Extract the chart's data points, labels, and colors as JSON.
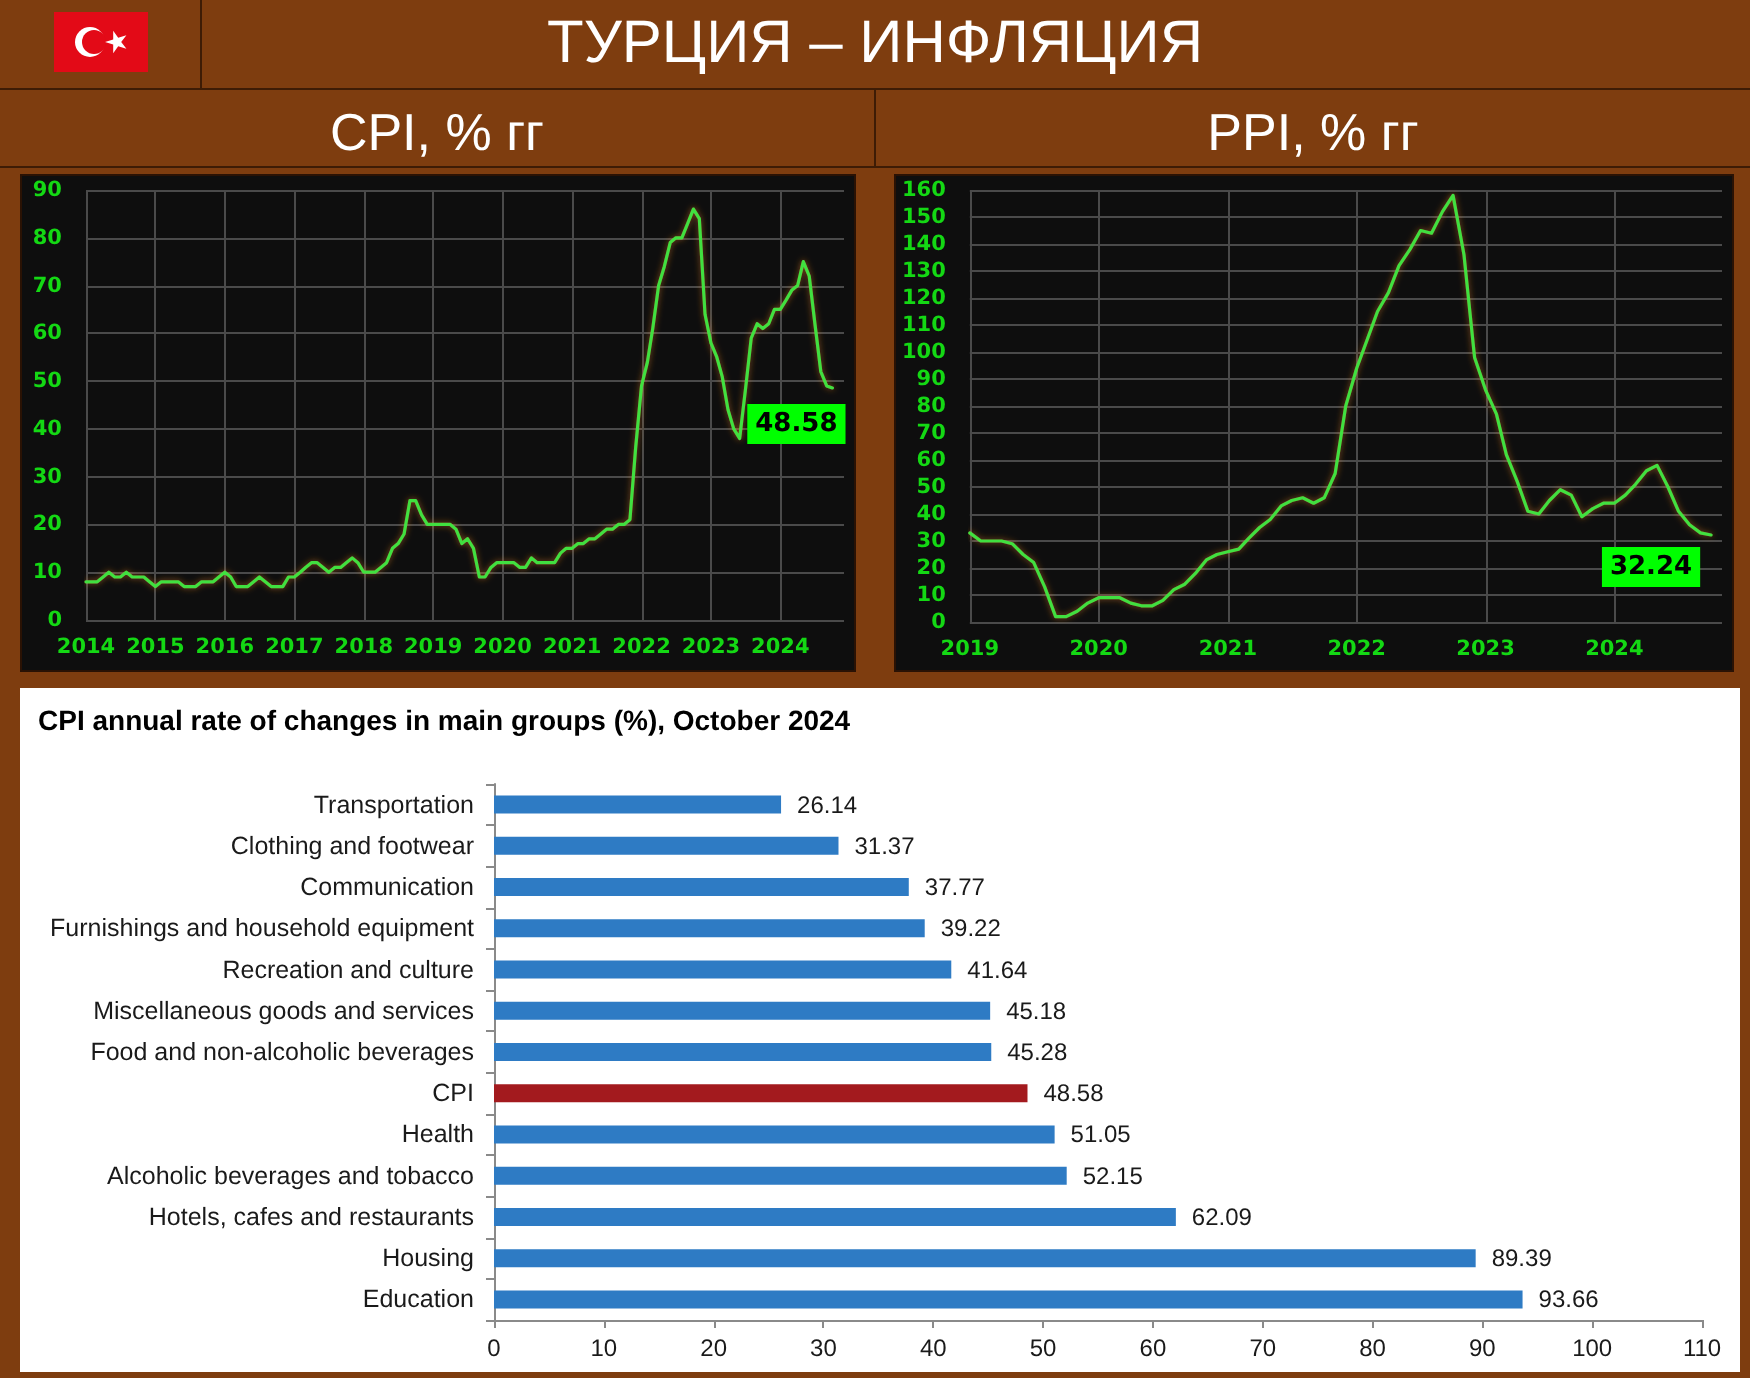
{
  "chart_data": [
    {
      "type": "other",
      "title": "ТУРЦИЯ – ИНФЛЯЦИЯ"
    },
    {
      "type": "line",
      "title": "CPI, % гг",
      "x": [
        "2014-01",
        "2014-02",
        "2014-03",
        "2014-04",
        "2014-05",
        "2014-06",
        "2014-07",
        "2014-08",
        "2014-09",
        "2014-10",
        "2014-11",
        "2014-12",
        "2015-01",
        "2015-02",
        "2015-03",
        "2015-04",
        "2015-05",
        "2015-06",
        "2015-07",
        "2015-08",
        "2015-09",
        "2015-10",
        "2015-11",
        "2015-12",
        "2016-01",
        "2016-02",
        "2016-03",
        "2016-04",
        "2016-05",
        "2016-06",
        "2016-07",
        "2016-08",
        "2016-09",
        "2016-10",
        "2016-11",
        "2016-12",
        "2017-01",
        "2017-02",
        "2017-03",
        "2017-04",
        "2017-05",
        "2017-06",
        "2017-07",
        "2017-08",
        "2017-09",
        "2017-10",
        "2017-11",
        "2017-12",
        "2018-01",
        "2018-02",
        "2018-03",
        "2018-04",
        "2018-05",
        "2018-06",
        "2018-07",
        "2018-08",
        "2018-09",
        "2018-10",
        "2018-11",
        "2018-12",
        "2019-01",
        "2019-02",
        "2019-03",
        "2019-04",
        "2019-05",
        "2019-06",
        "2019-07",
        "2019-08",
        "2019-09",
        "2019-10",
        "2019-11",
        "2019-12",
        "2020-01",
        "2020-02",
        "2020-03",
        "2020-04",
        "2020-05",
        "2020-06",
        "2020-07",
        "2020-08",
        "2020-09",
        "2020-10",
        "2020-11",
        "2020-12",
        "2021-01",
        "2021-02",
        "2021-03",
        "2021-04",
        "2021-05",
        "2021-06",
        "2021-07",
        "2021-08",
        "2021-09",
        "2021-10",
        "2021-11",
        "2021-12",
        "2022-01",
        "2022-02",
        "2022-03",
        "2022-04",
        "2022-05",
        "2022-06",
        "2022-07",
        "2022-08",
        "2022-09",
        "2022-10",
        "2022-11",
        "2022-12",
        "2023-01",
        "2023-02",
        "2023-03",
        "2023-04",
        "2023-05",
        "2023-06",
        "2023-07",
        "2023-08",
        "2023-09",
        "2023-10",
        "2023-11",
        "2023-12",
        "2024-01",
        "2024-02",
        "2024-03",
        "2024-04",
        "2024-05",
        "2024-06",
        "2024-07",
        "2024-08",
        "2024-09",
        "2024-10"
      ],
      "values": [
        8,
        8,
        8,
        9,
        10,
        9,
        9,
        10,
        9,
        9,
        9,
        8,
        7,
        8,
        8,
        8,
        8,
        7,
        7,
        7,
        8,
        8,
        8,
        9,
        10,
        9,
        7,
        7,
        7,
        8,
        9,
        8,
        7,
        7,
        7,
        9,
        9,
        10,
        11,
        12,
        12,
        11,
        10,
        11,
        11,
        12,
        13,
        12,
        10,
        10,
        10,
        11,
        12,
        15,
        16,
        18,
        25,
        25,
        22,
        20,
        20,
        20,
        20,
        20,
        19,
        16,
        17,
        15,
        9,
        9,
        11,
        12,
        12,
        12,
        12,
        11,
        11,
        13,
        12,
        12,
        12,
        12,
        14,
        15,
        15,
        16,
        16,
        17,
        17,
        18,
        19,
        19,
        20,
        20,
        21,
        36,
        49,
        54,
        61,
        70,
        74,
        79,
        80,
        80,
        83,
        86,
        84,
        64,
        58,
        55,
        51,
        44,
        40,
        38,
        48,
        59,
        62,
        61,
        62,
        65,
        65,
        67,
        69,
        70,
        75,
        72,
        62,
        52,
        49,
        48.58
      ],
      "color": "#3fe03f",
      "xlim": [
        "2014-01",
        "2024-12"
      ],
      "xticks": [
        "2014",
        "2015",
        "2016",
        "2017",
        "2018",
        "2019",
        "2020",
        "2021",
        "2022",
        "2023",
        "2024"
      ],
      "ylim": [
        0,
        90
      ],
      "yticks": [
        0,
        10,
        20,
        30,
        40,
        50,
        60,
        70,
        80,
        90
      ],
      "grid": true,
      "marker": "none",
      "annotations": [
        {
          "text": "48.58",
          "x": "2024-10",
          "y": 48.58
        }
      ]
    },
    {
      "type": "line",
      "title": "PPI, % гг",
      "x": [
        "2019-01",
        "2019-02",
        "2019-03",
        "2019-04",
        "2019-05",
        "2019-06",
        "2019-07",
        "2019-08",
        "2019-09",
        "2019-10",
        "2019-11",
        "2019-12",
        "2020-01",
        "2020-02",
        "2020-03",
        "2020-04",
        "2020-05",
        "2020-06",
        "2020-07",
        "2020-08",
        "2020-09",
        "2020-10",
        "2020-11",
        "2020-12",
        "2021-01",
        "2021-02",
        "2021-03",
        "2021-04",
        "2021-05",
        "2021-06",
        "2021-07",
        "2021-08",
        "2021-09",
        "2021-10",
        "2021-11",
        "2021-12",
        "2022-01",
        "2022-02",
        "2022-03",
        "2022-04",
        "2022-05",
        "2022-06",
        "2022-07",
        "2022-08",
        "2022-09",
        "2022-10",
        "2022-11",
        "2022-12",
        "2023-01",
        "2023-02",
        "2023-03",
        "2023-04",
        "2023-05",
        "2023-06",
        "2023-07",
        "2023-08",
        "2023-09",
        "2023-10",
        "2023-11",
        "2023-12",
        "2024-01",
        "2024-02",
        "2024-03",
        "2024-04",
        "2024-05",
        "2024-06",
        "2024-07",
        "2024-08",
        "2024-09",
        "2024-10"
      ],
      "values": [
        33,
        30,
        30,
        30,
        29,
        25,
        22,
        13,
        2,
        2,
        4,
        7,
        9,
        9,
        9,
        7,
        6,
        6,
        8,
        12,
        14,
        18,
        23,
        25,
        26,
        27,
        31,
        35,
        38,
        43,
        45,
        46,
        44,
        46,
        55,
        80,
        94,
        105,
        115,
        122,
        132,
        138,
        145,
        144,
        152,
        158,
        136,
        98,
        86,
        77,
        62,
        52,
        41,
        40,
        45,
        49,
        47,
        39,
        42,
        44,
        44,
        47,
        51,
        56,
        58,
        50,
        41,
        36,
        33,
        32.24
      ],
      "color": "#3fe03f",
      "xlim": [
        "2019-01",
        "2024-11"
      ],
      "xticks": [
        "2019",
        "2020",
        "2021",
        "2022",
        "2023",
        "2024"
      ],
      "ylim": [
        0,
        160
      ],
      "yticks": [
        0,
        10,
        20,
        30,
        40,
        50,
        60,
        70,
        80,
        90,
        100,
        110,
        120,
        130,
        140,
        150,
        160
      ],
      "grid": true,
      "marker": "none",
      "annotations": [
        {
          "text": "32.24",
          "x": "2024-10",
          "y": 32.24
        }
      ]
    },
    {
      "type": "bar",
      "orientation": "horizontal",
      "title": "CPI annual rate of changes in main groups (%), October 2024",
      "categories": [
        "Transportation",
        "Clothing and footwear",
        "Communication",
        "Furnishings and household equipment",
        "Recreation and culture",
        "Miscellaneous goods and services",
        "Food and non-alcoholic beverages",
        "CPI",
        "Health",
        "Alcoholic beverages and tobacco",
        "Hotels, cafes and restaurants",
        "Housing",
        "Education"
      ],
      "values": [
        26.14,
        31.37,
        37.77,
        39.22,
        41.64,
        45.18,
        45.28,
        48.58,
        51.05,
        52.15,
        62.09,
        89.39,
        93.66
      ],
      "colors": [
        "#2e7bc4",
        "#2e7bc4",
        "#2e7bc4",
        "#2e7bc4",
        "#2e7bc4",
        "#2e7bc4",
        "#2e7bc4",
        "#a31a1e",
        "#2e7bc4",
        "#2e7bc4",
        "#2e7bc4",
        "#2e7bc4",
        "#2e7bc4"
      ],
      "xlim": [
        0,
        110
      ],
      "xticks": [
        0,
        10,
        20,
        30,
        40,
        50,
        60,
        70,
        80,
        90,
        100,
        110
      ],
      "data_labels": true
    }
  ]
}
